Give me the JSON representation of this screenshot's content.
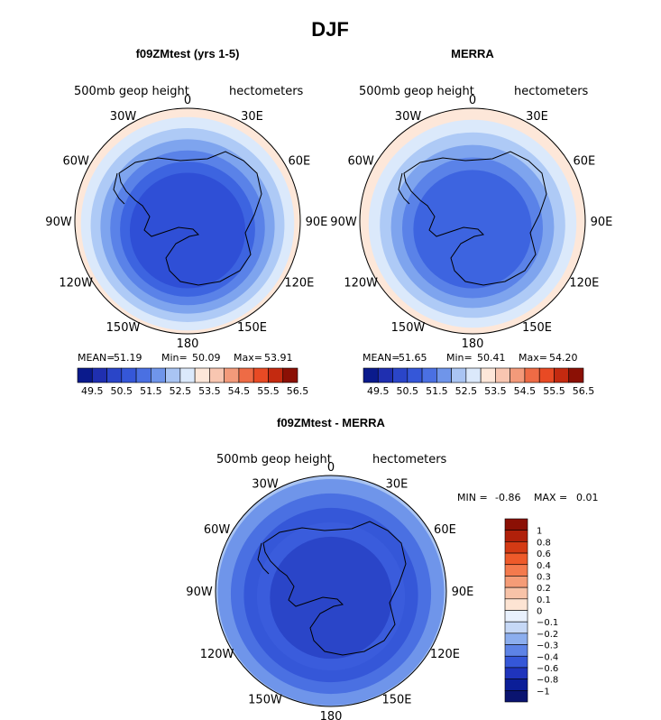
{
  "figure_title": "DJF",
  "chart_data": [
    {
      "type": "heatmap",
      "projection": "south-polar-stereographic",
      "title": "f09ZMtest (yrs 1-5)",
      "left_label": "500mb geop height",
      "right_label": "hectometers",
      "longitude_labels": [
        "0",
        "30E",
        "60E",
        "90E",
        "120E",
        "150E",
        "180",
        "150W",
        "120W",
        "90W",
        "60W",
        "30W"
      ],
      "stats": {
        "mean_label": "MEAN=",
        "mean": "51.19",
        "min_label": "Min=",
        "min": "50.09",
        "max_label": "Max=",
        "max": "53.91"
      },
      "colorbar": {
        "orientation": "horizontal",
        "levels": [
          "49.5",
          "50",
          "50.5",
          "51",
          "51.5",
          "52",
          "52.5",
          "53",
          "53.5",
          "54",
          "54.5",
          "55",
          "55.5",
          "56",
          "56.5"
        ],
        "tick_labels": [
          "49.5",
          "50.5",
          "51.5",
          "52.5",
          "53.5",
          "54.5",
          "55.5",
          "56.5"
        ]
      },
      "rings_outside_in": [
        {
          "value": 54.0,
          "color": "#f4c1ad"
        },
        {
          "value": 53.5,
          "color": "#fde7d9"
        },
        {
          "value": 53.0,
          "color": "#dbe9fb"
        },
        {
          "value": 52.5,
          "color": "#aecaf6"
        },
        {
          "value": 52.0,
          "color": "#7ea4ee"
        },
        {
          "value": 51.5,
          "color": "#5a82e8"
        },
        {
          "value": 51.0,
          "color": "#3d64e0"
        },
        {
          "value": 50.5,
          "color": "#2f4fd6"
        }
      ]
    },
    {
      "type": "heatmap",
      "projection": "south-polar-stereographic",
      "title": "MERRA",
      "left_label": "500mb geop height",
      "right_label": "hectometers",
      "longitude_labels": [
        "0",
        "30E",
        "60E",
        "90E",
        "120E",
        "150E",
        "180",
        "150W",
        "120W",
        "90W",
        "60W",
        "30W"
      ],
      "stats": {
        "mean_label": "MEAN=",
        "mean": "51.65",
        "min_label": "Min=",
        "min": "50.41",
        "max_label": "Max=",
        "max": "54.20"
      },
      "colorbar": {
        "orientation": "horizontal",
        "levels": [
          "49.5",
          "50",
          "50.5",
          "51",
          "51.5",
          "52",
          "52.5",
          "53",
          "53.5",
          "54",
          "54.5",
          "55",
          "55.5",
          "56",
          "56.5"
        ],
        "tick_labels": [
          "49.5",
          "50.5",
          "51.5",
          "52.5",
          "53.5",
          "54.5",
          "55.5",
          "56.5"
        ]
      },
      "rings_outside_in": [
        {
          "value": 54.0,
          "color": "#f4c1ad"
        },
        {
          "value": 53.5,
          "color": "#fde7d9"
        },
        {
          "value": 53.0,
          "color": "#dbe9fb"
        },
        {
          "value": 52.5,
          "color": "#aecaf6"
        },
        {
          "value": 52.0,
          "color": "#7ea4ee"
        },
        {
          "value": 51.5,
          "color": "#5a82e8"
        },
        {
          "value": 51.0,
          "color": "#3d64e0"
        }
      ]
    },
    {
      "type": "heatmap",
      "projection": "south-polar-stereographic",
      "title": "f09ZMtest - MERRA",
      "left_label": "500mb geop height",
      "right_label": "hectometers",
      "longitude_labels": [
        "0",
        "30E",
        "60E",
        "90E",
        "120E",
        "150E",
        "180",
        "150W",
        "120W",
        "90W",
        "60W",
        "30W"
      ],
      "stats": {
        "min_label": "MIN =",
        "min": "-0.86",
        "max_label": "MAX =",
        "max": "0.01"
      },
      "colorbar": {
        "orientation": "vertical",
        "tick_labels_top_down": [
          "1",
          "0.8",
          "0.6",
          "0.4",
          "0.3",
          "0.2",
          "0.1",
          "0",
          "−0.1",
          "−0.2",
          "−0.3",
          "−0.4",
          "−0.6",
          "−0.8",
          "−1"
        ]
      },
      "rings_outside_in": [
        {
          "value": -0.1,
          "color": "#a9c4f3"
        },
        {
          "value": -0.2,
          "color": "#6f95ea"
        },
        {
          "value": -0.3,
          "color": "#4a70e2"
        },
        {
          "value": -0.4,
          "color": "#3557d8"
        },
        {
          "value": -0.5,
          "color": "#3a5cdc"
        },
        {
          "value": -0.6,
          "color": "#2a45c8"
        }
      ]
    }
  ],
  "colors": {
    "ramp_horizontal": [
      "#0a1a8c",
      "#1f2fb0",
      "#2a45c8",
      "#3557d8",
      "#4a70e2",
      "#6f95ea",
      "#a9c4f3",
      "#dbe9fb",
      "#fde7d9",
      "#f8c6b1",
      "#f39a7a",
      "#ee6b45",
      "#e84a24",
      "#c42a10",
      "#8b1005"
    ],
    "ramp_vertical_top_down": [
      "#8b1005",
      "#b0200a",
      "#d43a14",
      "#ee5a2a",
      "#f47a4d",
      "#f59c77",
      "#f8c3a8",
      "#fde4d3",
      "#e9f1fd",
      "#c6d8f6",
      "#8caeee",
      "#5d83e6",
      "#3557d8",
      "#1f34bc",
      "#0b1e98",
      "#0a1470"
    ]
  }
}
